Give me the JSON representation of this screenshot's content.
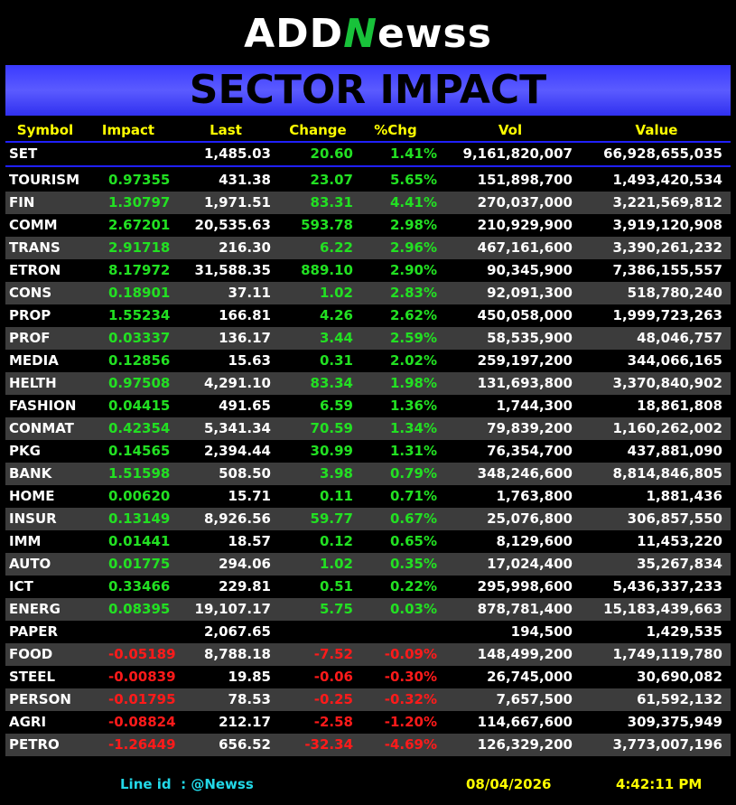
{
  "logo": {
    "left": "ADD",
    "mark": "N",
    "right": "ewss"
  },
  "banner": "SECTOR IMPACT",
  "table": {
    "columns": [
      "Symbol",
      "Impact",
      "Last",
      "Change",
      "%Chg",
      "Vol",
      "Value"
    ],
    "index_row": [
      "SET",
      null,
      "1,485.03",
      "20.60",
      "1.41%",
      "9,161,820,007",
      "66,928,655,035"
    ],
    "rows": [
      [
        "TOURISM",
        "0.97355",
        "431.38",
        "23.07",
        "5.65%",
        "151,898,700",
        "1,493,420,534"
      ],
      [
        "FIN",
        "1.30797",
        "1,971.51",
        "83.31",
        "4.41%",
        "270,037,000",
        "3,221,569,812"
      ],
      [
        "COMM",
        "2.67201",
        "20,535.63",
        "593.78",
        "2.98%",
        "210,929,900",
        "3,919,120,908"
      ],
      [
        "TRANS",
        "2.91718",
        "216.30",
        "6.22",
        "2.96%",
        "467,161,600",
        "3,390,261,232"
      ],
      [
        "ETRON",
        "8.17972",
        "31,588.35",
        "889.10",
        "2.90%",
        "90,345,900",
        "7,386,155,557"
      ],
      [
        "CONS",
        "0.18901",
        "37.11",
        "1.02",
        "2.83%",
        "92,091,300",
        "518,780,240"
      ],
      [
        "PROP",
        "1.55234",
        "166.81",
        "4.26",
        "2.62%",
        "450,058,000",
        "1,999,723,263"
      ],
      [
        "PROF",
        "0.03337",
        "136.17",
        "3.44",
        "2.59%",
        "58,535,900",
        "48,046,757"
      ],
      [
        "MEDIA",
        "0.12856",
        "15.63",
        "0.31",
        "2.02%",
        "259,197,200",
        "344,066,165"
      ],
      [
        "HELTH",
        "0.97508",
        "4,291.10",
        "83.34",
        "1.98%",
        "131,693,800",
        "3,370,840,902"
      ],
      [
        "FASHION",
        "0.04415",
        "491.65",
        "6.59",
        "1.36%",
        "1,744,300",
        "18,861,808"
      ],
      [
        "CONMAT",
        "0.42354",
        "5,341.34",
        "70.59",
        "1.34%",
        "79,839,200",
        "1,160,262,002"
      ],
      [
        "PKG",
        "0.14565",
        "2,394.44",
        "30.99",
        "1.31%",
        "76,354,700",
        "437,881,090"
      ],
      [
        "BANK",
        "1.51598",
        "508.50",
        "3.98",
        "0.79%",
        "348,246,600",
        "8,814,846,805"
      ],
      [
        "HOME",
        "0.00620",
        "15.71",
        "0.11",
        "0.71%",
        "1,763,800",
        "1,881,436"
      ],
      [
        "INSUR",
        "0.13149",
        "8,926.56",
        "59.77",
        "0.67%",
        "25,076,800",
        "306,857,550"
      ],
      [
        "IMM",
        "0.01441",
        "18.57",
        "0.12",
        "0.65%",
        "8,129,600",
        "11,453,220"
      ],
      [
        "AUTO",
        "0.01775",
        "294.06",
        "1.02",
        "0.35%",
        "17,024,400",
        "35,267,834"
      ],
      [
        "ICT",
        "0.33466",
        "229.81",
        "0.51",
        "0.22%",
        "295,998,600",
        "5,436,337,233"
      ],
      [
        "ENERG",
        "0.08395",
        "19,107.17",
        "5.75",
        "0.03%",
        "878,781,400",
        "15,183,439,663"
      ],
      [
        "PAPER",
        null,
        "2,067.65",
        null,
        null,
        "194,500",
        "1,429,535"
      ],
      [
        "FOOD",
        "-0.05189",
        "8,788.18",
        "-7.52",
        "-0.09%",
        "148,499,200",
        "1,749,119,780"
      ],
      [
        "STEEL",
        "-0.00839",
        "19.85",
        "-0.06",
        "-0.30%",
        "26,745,000",
        "30,690,082"
      ],
      [
        "PERSON",
        "-0.01795",
        "78.53",
        "-0.25",
        "-0.32%",
        "7,657,500",
        "61,592,132"
      ],
      [
        "AGRI",
        "-0.08824",
        "212.17",
        "-2.58",
        "-1.20%",
        "114,667,600",
        "309,375,949"
      ],
      [
        "PETRO",
        "-1.26449",
        "656.52",
        "-32.34",
        "-4.69%",
        "126,329,200",
        "3,773,007,196"
      ]
    ]
  },
  "footer": {
    "line_id": "Line id  : @Newss",
    "date": "08/04/2026",
    "time": "4:42:11 PM"
  }
}
